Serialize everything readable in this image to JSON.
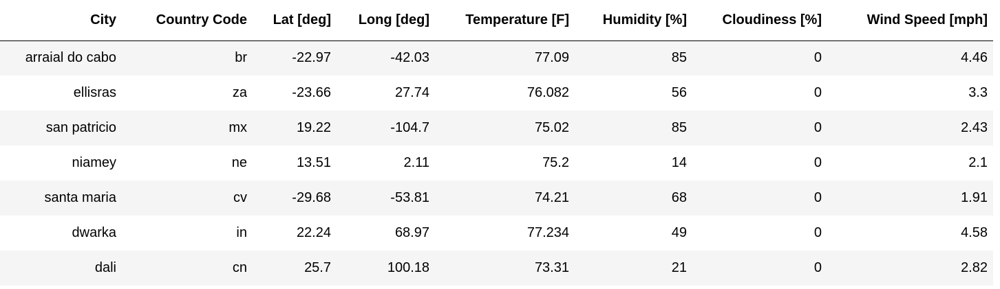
{
  "table": {
    "columns": [
      "City",
      "Country Code",
      "Lat [deg]",
      "Long [deg]",
      "Temperature [F]",
      "Humidity [%]",
      "Cloudiness [%]",
      "Wind Speed [mph]"
    ],
    "rows": [
      [
        "arraial do cabo",
        "br",
        "-22.97",
        "-42.03",
        "77.09",
        "85",
        "0",
        "4.46"
      ],
      [
        "ellisras",
        "za",
        "-23.66",
        "27.74",
        "76.082",
        "56",
        "0",
        "3.3"
      ],
      [
        "san patricio",
        "mx",
        "19.22",
        "-104.7",
        "75.02",
        "85",
        "0",
        "2.43"
      ],
      [
        "niamey",
        "ne",
        "13.51",
        "2.11",
        "75.2",
        "14",
        "0",
        "2.1"
      ],
      [
        "santa maria",
        "cv",
        "-29.68",
        "-53.81",
        "74.21",
        "68",
        "0",
        "1.91"
      ],
      [
        "dwarka",
        "in",
        "22.24",
        "68.97",
        "77.234",
        "49",
        "0",
        "4.58"
      ],
      [
        "dali",
        "cn",
        "25.7",
        "100.18",
        "73.31",
        "21",
        "0",
        "2.82"
      ]
    ]
  }
}
